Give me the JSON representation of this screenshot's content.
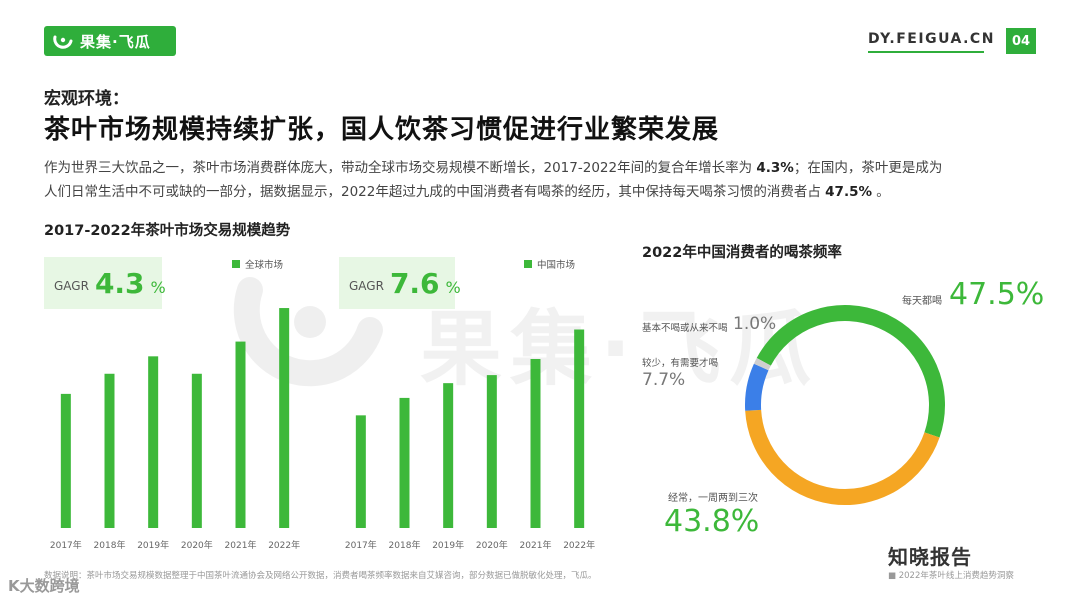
{
  "header": {
    "logo_text": "果集·飞瓜",
    "site_url": "DY.FEIGUA.CN",
    "page_number": "04"
  },
  "section_label": "宏观环境：",
  "main_title": "茶叶市场规模持续扩张，国人饮茶习惯促进行业繁荣发展",
  "intro": {
    "line1_pre": "作为世界三大饮品之一，茶叶市场消费群体庞大，带动全球市场交易规模不断增长，2017-2022年间的复合年增长率为 ",
    "line1_bold": "4.3%",
    "line1_post": "；在国内，茶叶更是成为",
    "line2_pre": "人们日常生活中不可或缺的一部分，据数据显示，2022年超过九成的中国消费者有喝茶的经历，其中保持每天喝茶习惯的消费者占 ",
    "line2_bold": "47.5%",
    "line2_post": " 。"
  },
  "watermark_text": "果集·飞瓜",
  "colors": {
    "brand_green": "#2fae3b",
    "bar_green": "#3db83a",
    "donut_orange": "#f5a623",
    "donut_blue": "#3b7fe8",
    "donut_gray": "#cfcfcf"
  },
  "chart_data": [
    {
      "type": "bar",
      "title": "2017-2022年茶叶市场交易规模趋势",
      "gagr_label": "GAGR",
      "gagr_value": "4.3",
      "gagr_unit": "%",
      "categories": [
        "2017年",
        "2018年",
        "2019年",
        "2020年",
        "2021年",
        "2022年"
      ],
      "series": [
        {
          "name": "全球市场",
          "values": [
            100,
            115,
            128,
            115,
            139,
            164
          ]
        }
      ],
      "ylim": [
        0,
        170
      ],
      "axis": "none"
    },
    {
      "type": "bar",
      "title": "",
      "gagr_label": "GAGR",
      "gagr_value": "7.6",
      "gagr_unit": "%",
      "categories": [
        "2017年",
        "2018年",
        "2019年",
        "2020年",
        "2021年",
        "2022年"
      ],
      "series": [
        {
          "name": "中国市场",
          "values": [
            84,
            97,
            108,
            114,
            126,
            148
          ]
        }
      ],
      "ylim": [
        0,
        170
      ],
      "axis": "none"
    },
    {
      "type": "pie",
      "title": "2022年中国消费者的喝茶频率",
      "slices": [
        {
          "label": "每天都喝",
          "value": 47.5,
          "display": "47.5",
          "color": "#3db83a"
        },
        {
          "label": "经常，一周两到三次",
          "value": 43.8,
          "display": "43.8",
          "color": "#f5a623"
        },
        {
          "label": "较少，有需要才喝",
          "value": 7.7,
          "display": "7.7",
          "color": "#3b7fe8"
        },
        {
          "label": "基本不喝或从来不喝",
          "value": 1.0,
          "display": "1.0",
          "color": "#cfcfcf"
        }
      ],
      "unit": "%",
      "donut": true
    }
  ],
  "footer": {
    "note": "数据说明：茶叶市场交易规模数据整理于中国茶叶流通协会及网络公开数据，消费者喝茶频率数据来自艾媒咨询，部分数据已做脱敏化处理，飞瓜。",
    "legend_note": "■ 2022年茶叶线上消费趋势洞察",
    "zhixiao": "知晓报告",
    "bottom_mark": "K大数跨境"
  }
}
